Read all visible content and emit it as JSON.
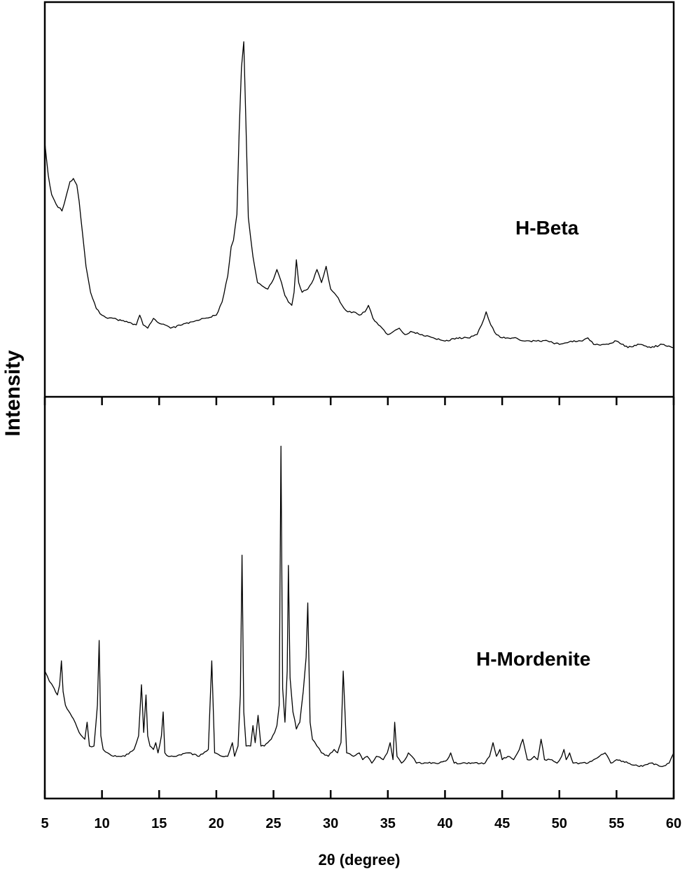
{
  "chart_data": {
    "type": "line",
    "xlabel": "2θ (degree)",
    "ylabel": "Intensity",
    "xlim": [
      5,
      60
    ],
    "xticks": [
      "5",
      "10",
      "15",
      "20",
      "25",
      "30",
      "35",
      "40",
      "45",
      "50",
      "55",
      "60"
    ],
    "yticks_shown": false,
    "grid": false,
    "layout": "two stacked panels sharing x-axis",
    "series": [
      {
        "name": "H-Beta",
        "panel": "top",
        "ylim": [
          0,
          1
        ],
        "x": [
          5.0,
          5.3,
          5.6,
          6.0,
          6.5,
          6.9,
          7.2,
          7.5,
          7.8,
          8.0,
          8.3,
          8.6,
          9.0,
          9.5,
          10.0,
          10.5,
          11.0,
          12.0,
          13.0,
          13.3,
          13.6,
          14.0,
          14.5,
          14.8,
          15.5,
          16.0,
          17.0,
          18.0,
          19.0,
          20.0,
          20.5,
          21.0,
          21.3,
          21.5,
          21.8,
          22.0,
          22.2,
          22.4,
          22.6,
          22.8,
          23.2,
          23.6,
          24.0,
          24.5,
          25.0,
          25.3,
          25.7,
          26.0,
          26.3,
          26.6,
          26.8,
          27.0,
          27.2,
          27.5,
          28.0,
          28.5,
          28.8,
          29.2,
          29.6,
          30.0,
          30.5,
          31.0,
          31.5,
          32.0,
          32.5,
          33.0,
          33.3,
          33.7,
          34.5,
          35.0,
          35.5,
          36.0,
          36.5,
          37.0,
          38.0,
          39.0,
          40.0,
          41.0,
          42.0,
          42.8,
          43.2,
          43.6,
          44.0,
          44.5,
          45.0,
          46.0,
          47.0,
          48.0,
          49.0,
          50.0,
          51.0,
          52.0,
          52.5,
          53.0,
          54.0,
          55.0,
          56.0,
          57.0,
          58.0,
          59.0,
          60.0
        ],
        "y": [
          0.68,
          0.58,
          0.52,
          0.49,
          0.47,
          0.52,
          0.56,
          0.57,
          0.55,
          0.5,
          0.4,
          0.3,
          0.22,
          0.17,
          0.15,
          0.14,
          0.14,
          0.13,
          0.12,
          0.15,
          0.12,
          0.11,
          0.14,
          0.13,
          0.12,
          0.11,
          0.12,
          0.13,
          0.14,
          0.15,
          0.19,
          0.27,
          0.36,
          0.38,
          0.46,
          0.72,
          0.91,
          0.99,
          0.72,
          0.45,
          0.33,
          0.25,
          0.24,
          0.23,
          0.26,
          0.29,
          0.25,
          0.21,
          0.19,
          0.18,
          0.22,
          0.32,
          0.25,
          0.22,
          0.23,
          0.26,
          0.29,
          0.25,
          0.3,
          0.23,
          0.21,
          0.18,
          0.16,
          0.16,
          0.15,
          0.16,
          0.18,
          0.14,
          0.11,
          0.09,
          0.1,
          0.11,
          0.09,
          0.1,
          0.09,
          0.08,
          0.07,
          0.08,
          0.08,
          0.09,
          0.12,
          0.16,
          0.12,
          0.09,
          0.08,
          0.08,
          0.07,
          0.07,
          0.07,
          0.06,
          0.07,
          0.07,
          0.08,
          0.06,
          0.06,
          0.07,
          0.05,
          0.06,
          0.05,
          0.06,
          0.05
        ]
      },
      {
        "name": "H-Mordenite",
        "panel": "bottom",
        "ylim": [
          0,
          1
        ],
        "x": [
          5.0,
          5.4,
          5.8,
          6.1,
          6.3,
          6.45,
          6.6,
          6.8,
          7.5,
          8.0,
          8.5,
          8.7,
          8.9,
          9.3,
          9.6,
          9.75,
          9.9,
          10.1,
          10.5,
          11.0,
          12.0,
          12.8,
          13.2,
          13.45,
          13.65,
          13.85,
          14.0,
          14.2,
          14.5,
          14.7,
          14.9,
          15.2,
          15.35,
          15.5,
          15.8,
          16.5,
          17.5,
          18.5,
          19.3,
          19.6,
          19.85,
          20.5,
          21.0,
          21.4,
          21.6,
          21.9,
          22.1,
          22.25,
          22.4,
          22.6,
          23.0,
          23.2,
          23.4,
          23.65,
          23.9,
          24.2,
          24.5,
          24.8,
          25.1,
          25.3,
          25.5,
          25.65,
          25.8,
          26.0,
          26.2,
          26.3,
          26.45,
          26.7,
          27.0,
          27.3,
          27.6,
          27.85,
          28.0,
          28.2,
          28.4,
          28.8,
          29.2,
          29.8,
          30.3,
          30.6,
          30.9,
          31.1,
          31.4,
          32.0,
          32.5,
          32.8,
          33.2,
          33.6,
          34.0,
          34.6,
          34.95,
          35.2,
          35.45,
          35.6,
          35.8,
          36.2,
          36.5,
          36.8,
          37.1,
          37.5,
          38.5,
          39.5,
          40.2,
          40.5,
          40.8,
          41.5,
          42.5,
          43.5,
          43.9,
          44.2,
          44.5,
          44.8,
          45.0,
          45.5,
          46.0,
          46.5,
          46.8,
          47.2,
          47.5,
          47.8,
          48.1,
          48.4,
          48.7,
          49.2,
          49.8,
          50.2,
          50.4,
          50.6,
          50.9,
          51.2,
          51.8,
          52.5,
          53.0,
          53.5,
          54.0,
          54.5,
          55.0,
          56.0,
          57.0,
          58.0,
          59.0,
          59.6,
          60.0
        ],
        "y": [
          0.3,
          0.27,
          0.25,
          0.23,
          0.26,
          0.33,
          0.24,
          0.2,
          0.16,
          0.12,
          0.1,
          0.15,
          0.08,
          0.08,
          0.2,
          0.39,
          0.11,
          0.07,
          0.06,
          0.05,
          0.05,
          0.07,
          0.11,
          0.26,
          0.12,
          0.23,
          0.11,
          0.08,
          0.07,
          0.09,
          0.06,
          0.11,
          0.18,
          0.06,
          0.05,
          0.05,
          0.06,
          0.05,
          0.07,
          0.33,
          0.06,
          0.05,
          0.05,
          0.09,
          0.05,
          0.08,
          0.23,
          0.64,
          0.18,
          0.08,
          0.08,
          0.14,
          0.09,
          0.17,
          0.08,
          0.08,
          0.09,
          0.1,
          0.12,
          0.14,
          0.2,
          0.96,
          0.25,
          0.15,
          0.3,
          0.61,
          0.28,
          0.18,
          0.13,
          0.15,
          0.24,
          0.34,
          0.5,
          0.15,
          0.1,
          0.08,
          0.06,
          0.05,
          0.07,
          0.06,
          0.09,
          0.3,
          0.06,
          0.05,
          0.06,
          0.04,
          0.05,
          0.03,
          0.05,
          0.04,
          0.06,
          0.09,
          0.04,
          0.15,
          0.05,
          0.03,
          0.04,
          0.06,
          0.05,
          0.03,
          0.03,
          0.03,
          0.04,
          0.06,
          0.03,
          0.03,
          0.03,
          0.03,
          0.05,
          0.09,
          0.05,
          0.07,
          0.04,
          0.05,
          0.04,
          0.07,
          0.1,
          0.04,
          0.04,
          0.05,
          0.04,
          0.1,
          0.04,
          0.04,
          0.03,
          0.05,
          0.07,
          0.04,
          0.06,
          0.03,
          0.03,
          0.03,
          0.04,
          0.05,
          0.06,
          0.03,
          0.04,
          0.03,
          0.02,
          0.03,
          0.02,
          0.03,
          0.06
        ]
      }
    ]
  }
}
